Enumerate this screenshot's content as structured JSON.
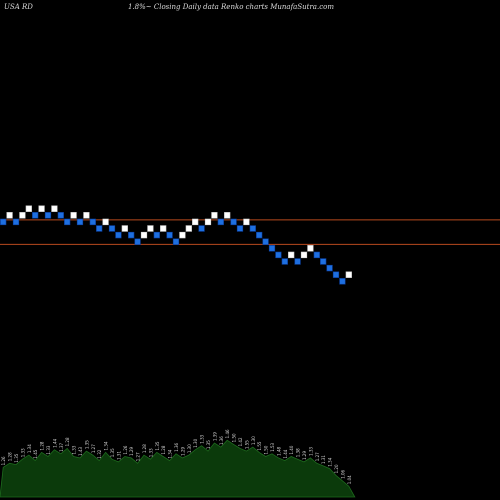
{
  "header": {
    "ticker": "USA RD",
    "title": "1.8%~  Closing Daily data  Renko  charts MunafaSutra.com"
  },
  "colors": {
    "background": "#000000",
    "up_brick": "#ffffff",
    "down_brick": "#1e6fe0",
    "brick_border": "#0b3f9e",
    "ref_line": "#b84a1e",
    "volume_fill": "#0b3a0b",
    "volume_line": "#1d6a1d",
    "label": "#dddddd"
  },
  "chart_data": {
    "type": "renko",
    "bricks": [
      {
        "level": 8,
        "dir": "down"
      },
      {
        "level": 9,
        "dir": "up"
      },
      {
        "level": 8,
        "dir": "down"
      },
      {
        "level": 9,
        "dir": "up"
      },
      {
        "level": 10,
        "dir": "up"
      },
      {
        "level": 9,
        "dir": "down"
      },
      {
        "level": 10,
        "dir": "up"
      },
      {
        "level": 9,
        "dir": "down"
      },
      {
        "level": 10,
        "dir": "up"
      },
      {
        "level": 9,
        "dir": "down"
      },
      {
        "level": 8,
        "dir": "down"
      },
      {
        "level": 9,
        "dir": "up"
      },
      {
        "level": 8,
        "dir": "down"
      },
      {
        "level": 9,
        "dir": "up"
      },
      {
        "level": 8,
        "dir": "down"
      },
      {
        "level": 7,
        "dir": "down"
      },
      {
        "level": 8,
        "dir": "up"
      },
      {
        "level": 7,
        "dir": "down"
      },
      {
        "level": 6,
        "dir": "down"
      },
      {
        "level": 7,
        "dir": "up"
      },
      {
        "level": 6,
        "dir": "down"
      },
      {
        "level": 5,
        "dir": "down"
      },
      {
        "level": 6,
        "dir": "up"
      },
      {
        "level": 7,
        "dir": "up"
      },
      {
        "level": 6,
        "dir": "down"
      },
      {
        "level": 7,
        "dir": "up"
      },
      {
        "level": 6,
        "dir": "down"
      },
      {
        "level": 5,
        "dir": "down"
      },
      {
        "level": 6,
        "dir": "up"
      },
      {
        "level": 7,
        "dir": "up"
      },
      {
        "level": 8,
        "dir": "up"
      },
      {
        "level": 7,
        "dir": "down"
      },
      {
        "level": 8,
        "dir": "up"
      },
      {
        "level": 9,
        "dir": "up"
      },
      {
        "level": 8,
        "dir": "down"
      },
      {
        "level": 9,
        "dir": "up"
      },
      {
        "level": 8,
        "dir": "down"
      },
      {
        "level": 7,
        "dir": "down"
      },
      {
        "level": 8,
        "dir": "up"
      },
      {
        "level": 7,
        "dir": "down"
      },
      {
        "level": 6,
        "dir": "down"
      },
      {
        "level": 5,
        "dir": "down"
      },
      {
        "level": 4,
        "dir": "down"
      },
      {
        "level": 3,
        "dir": "down"
      },
      {
        "level": 2,
        "dir": "down"
      },
      {
        "level": 3,
        "dir": "up"
      },
      {
        "level": 2,
        "dir": "down"
      },
      {
        "level": 3,
        "dir": "up"
      },
      {
        "level": 4,
        "dir": "up"
      },
      {
        "level": 3,
        "dir": "down"
      },
      {
        "level": 2,
        "dir": "down"
      },
      {
        "level": 1,
        "dir": "down"
      },
      {
        "level": 0,
        "dir": "down"
      },
      {
        "level": -1,
        "dir": "down"
      },
      {
        "level": 0,
        "dir": "up"
      }
    ],
    "reference_lines": [
      8.3,
      4.6
    ],
    "volume": {
      "values": [
        22,
        25,
        24,
        28,
        31,
        27,
        33,
        30,
        35,
        32,
        36,
        30,
        29,
        34,
        31,
        27,
        33,
        28,
        26,
        30,
        29,
        25,
        31,
        28,
        33,
        30,
        27,
        32,
        29,
        31,
        35,
        38,
        34,
        40,
        37,
        42,
        39,
        36,
        34,
        37,
        33,
        30,
        32,
        29,
        27,
        30,
        28,
        26,
        29,
        25,
        23,
        21,
        16,
        12,
        8
      ],
      "labels": [
        "1.26",
        "1.28",
        "1.35",
        "1.33",
        "1.34",
        "1.45",
        "1.28",
        "1.33",
        "1.44",
        "1.37",
        "1.28",
        "1.33",
        "1.43",
        "1.35",
        "1.27",
        "1.32",
        "1.34",
        "1.35",
        "1.31",
        "1.26",
        "1.29",
        "1.27",
        "1.28",
        "1.33",
        "1.35",
        "1.28",
        "1.34",
        "1.36",
        "1.29",
        "1.30",
        "1.30",
        "1.33",
        "1.35",
        "1.39",
        "1.36",
        "1.46",
        "1.50",
        "1.42",
        "1.55",
        "1.30",
        "1.55",
        "1.50",
        "1.53",
        "1.48",
        "1.44",
        "1.40",
        "1.38",
        "1.29",
        "1.33",
        "1.27",
        "1.31",
        "1.34",
        "1.20",
        "1.06",
        "1.04"
      ]
    }
  }
}
